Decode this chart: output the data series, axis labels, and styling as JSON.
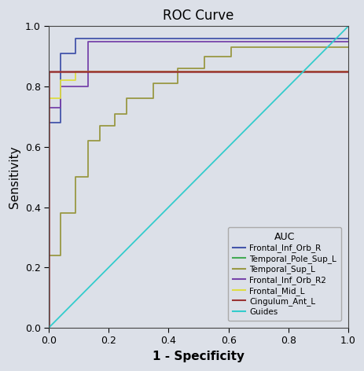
{
  "title": "ROC Curve",
  "xlabel": "1 - Specificity",
  "ylabel": "Sensitivity",
  "xlim": [
    0.0,
    1.0
  ],
  "ylim": [
    0.0,
    1.0
  ],
  "background_color": "#dce0e8",
  "plot_bg_color": "#dce0e8",
  "title_fontsize": 12,
  "axis_label_fontsize": 11,
  "tick_fontsize": 9,
  "legend_title": "AUC",
  "curves": {
    "Frontal_Inf_Orb_R": {
      "color": "#4455aa",
      "fpr": [
        0.0,
        0.0,
        0.04,
        0.04,
        0.09,
        0.09,
        0.26,
        0.26,
        1.0
      ],
      "tpr": [
        0.0,
        0.68,
        0.68,
        0.91,
        0.91,
        0.96,
        0.96,
        0.96,
        0.96
      ]
    },
    "Temporal_Pole_Sup_L": {
      "color": "#44aa55",
      "fpr": [
        0.0,
        0.0,
        1.0
      ],
      "tpr": [
        0.0,
        1.0,
        1.0
      ]
    },
    "Temporal_Sup_L": {
      "color": "#999944",
      "fpr": [
        0.0,
        0.0,
        0.04,
        0.04,
        0.09,
        0.09,
        0.13,
        0.13,
        0.17,
        0.17,
        0.22,
        0.22,
        0.26,
        0.26,
        0.35,
        0.35,
        0.43,
        0.43,
        0.52,
        0.52,
        0.61,
        0.61,
        1.0
      ],
      "tpr": [
        0.0,
        0.24,
        0.24,
        0.38,
        0.38,
        0.5,
        0.5,
        0.62,
        0.62,
        0.67,
        0.67,
        0.71,
        0.71,
        0.76,
        0.76,
        0.81,
        0.81,
        0.86,
        0.86,
        0.9,
        0.9,
        0.93,
        0.93
      ]
    },
    "Frontal_Inf_Orb_R2": {
      "color": "#7744aa",
      "fpr": [
        0.0,
        0.0,
        0.04,
        0.04,
        0.13,
        0.13,
        0.22,
        0.22,
        1.0
      ],
      "tpr": [
        0.0,
        0.73,
        0.73,
        0.8,
        0.8,
        0.95,
        0.95,
        0.95,
        0.95
      ]
    },
    "Frontal_Mid_L": {
      "color": "#dddd44",
      "fpr": [
        0.0,
        0.0,
        0.04,
        0.04,
        0.09,
        0.09,
        1.0
      ],
      "tpr": [
        0.0,
        0.76,
        0.76,
        0.82,
        0.82,
        0.85,
        0.85
      ]
    },
    "Cingulum_Ant_L": {
      "color": "#993333",
      "fpr": [
        0.0,
        0.0,
        0.04,
        0.04,
        1.0
      ],
      "tpr": [
        0.0,
        0.85,
        0.85,
        0.85,
        0.85
      ]
    },
    "Guides": {
      "color": "#33cccc",
      "fpr": [
        0.0,
        1.0
      ],
      "tpr": [
        0.0,
        1.0
      ]
    }
  },
  "legend_labels": [
    "Frontal_Inf_Orb_R",
    "Temporal_Pole_Sup_L",
    "Temporal_Sup_L",
    "Frontal_Inf_Orb_R2",
    "Frontal_Mid_L",
    "Cingulum_Ant_L",
    "Guides"
  ]
}
